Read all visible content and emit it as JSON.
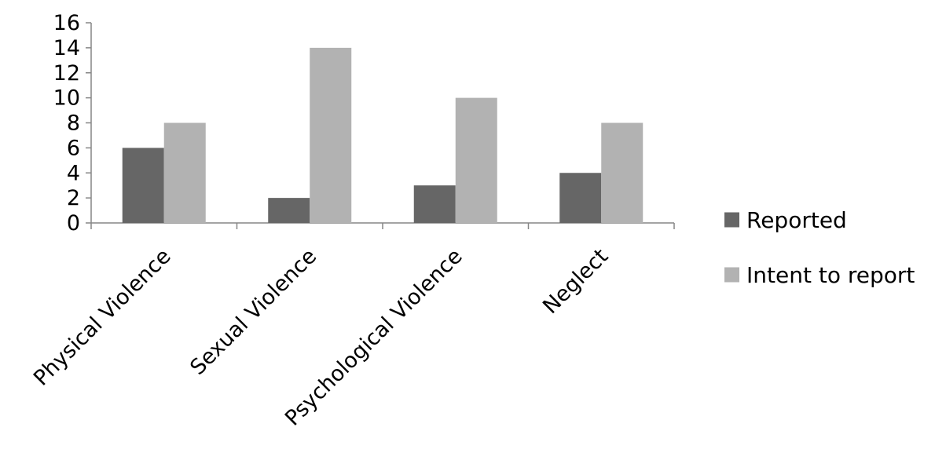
{
  "chart_data": {
    "type": "bar",
    "title": "",
    "xlabel": "",
    "ylabel": "",
    "categories": [
      "Physical Violence",
      "Sexual Violence",
      "Psychological Violence",
      "Neglect"
    ],
    "series": [
      {
        "name": "Reported",
        "values": [
          6,
          2,
          3,
          4
        ],
        "color": "#666666"
      },
      {
        "name": "Intent to report",
        "values": [
          8,
          14,
          10,
          8
        ],
        "color": "#b2b2b2"
      }
    ],
    "ylim": [
      0,
      16
    ],
    "yticks": [
      "0",
      "2",
      "4",
      "6",
      "8",
      "10",
      "12",
      "14",
      "16"
    ],
    "grid": false,
    "legend": "right"
  }
}
